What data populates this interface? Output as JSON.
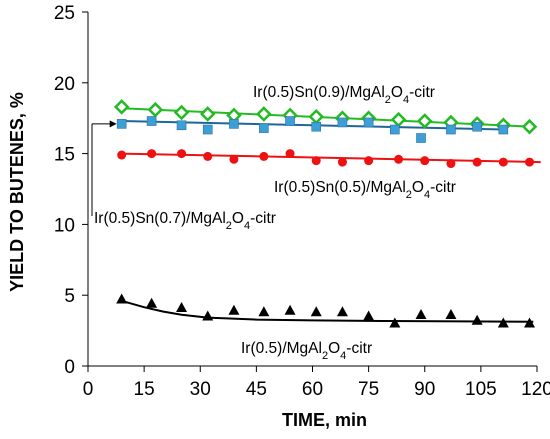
{
  "chart_data": {
    "type": "scatter",
    "xlabel": "TIME, min",
    "ylabel": "YIELD TO BUTENES, %",
    "xlim": [
      0,
      120
    ],
    "ylim": [
      0,
      25
    ],
    "xticks": [
      0,
      15,
      30,
      45,
      60,
      75,
      90,
      105,
      120
    ],
    "yticks": [
      0,
      5,
      10,
      15,
      20,
      25
    ],
    "grid": false,
    "legend": "none",
    "series": [
      {
        "name_parts": [
          "Ir(0.5)Sn(0.9)/MgAl",
          "2",
          "O",
          "4",
          "-citr"
        ],
        "marker": "diamond",
        "color": "#22bb22",
        "trend": "linear",
        "trend_color": "#22bb22",
        "x": [
          9,
          18,
          25,
          32,
          39,
          47,
          54,
          61,
          68,
          75,
          83,
          90,
          97,
          104,
          111,
          118
        ],
        "y": [
          18.3,
          18.1,
          17.9,
          17.8,
          17.7,
          17.8,
          17.7,
          17.6,
          17.5,
          17.5,
          17.4,
          17.3,
          17.2,
          17.1,
          17.0,
          16.9
        ],
        "fit": [
          [
            9,
            18.2
          ],
          [
            119,
            16.9
          ]
        ]
      },
      {
        "name_parts": [
          "Ir(0.5)Sn(0.7)/MgAl",
          "2",
          "O",
          "4",
          "-citr"
        ],
        "marker": "square",
        "color": "#3d9fd6",
        "trend": "linear",
        "trend_color": "#1f6699",
        "x": [
          9,
          17,
          25,
          32,
          39,
          47,
          54,
          61,
          68,
          75,
          82,
          89,
          97,
          104,
          111
        ],
        "y": [
          17.1,
          17.3,
          17.0,
          16.7,
          17.1,
          16.8,
          17.3,
          16.9,
          17.2,
          17.2,
          16.7,
          16.1,
          16.7,
          16.9,
          16.7
        ],
        "fit": [
          [
            9,
            17.3
          ],
          [
            111,
            16.7
          ]
        ]
      },
      {
        "name_parts": [
          "Ir(0.5)Sn(0.5)/MgAl",
          "2",
          "O",
          "4",
          "-citr"
        ],
        "marker": "circle",
        "color": "#ee1111",
        "trend": "linear",
        "trend_color": "#ee1111",
        "x": [
          9,
          17,
          25,
          32,
          39,
          47,
          54,
          61,
          68,
          75,
          83,
          90,
          97,
          104,
          111,
          118
        ],
        "y": [
          14.9,
          15.0,
          15.0,
          14.8,
          14.6,
          14.8,
          15.0,
          14.5,
          14.4,
          14.5,
          14.6,
          14.5,
          14.3,
          14.4,
          14.4,
          14.4
        ],
        "fit": [
          [
            9,
            15.0
          ],
          [
            121,
            14.4
          ]
        ]
      },
      {
        "name_parts": [
          "Ir(0.5)/MgAl",
          "2",
          "O",
          "4",
          "-citr"
        ],
        "marker": "triangle",
        "color": "#000000",
        "trend": "decay",
        "trend_color": "#000000",
        "x": [
          9,
          17,
          25,
          32,
          39,
          47,
          54,
          61,
          68,
          75,
          82,
          89,
          97,
          104,
          111,
          118
        ],
        "y": [
          4.7,
          4.4,
          4.1,
          3.5,
          3.9,
          3.8,
          3.9,
          3.8,
          3.8,
          3.5,
          3.0,
          3.6,
          3.6,
          3.2,
          3.0,
          3.0
        ],
        "fit": [
          [
            9,
            4.6
          ],
          [
            15,
            4.15
          ],
          [
            20,
            3.85
          ],
          [
            25,
            3.62
          ],
          [
            32,
            3.42
          ],
          [
            45,
            3.28
          ],
          [
            60,
            3.22
          ],
          [
            80,
            3.18
          ],
          [
            100,
            3.15
          ],
          [
            119,
            3.12
          ]
        ]
      }
    ]
  }
}
